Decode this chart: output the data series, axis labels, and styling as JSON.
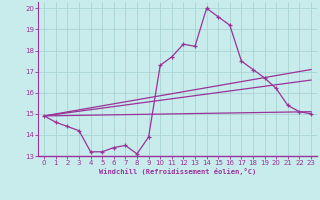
{
  "xlabel": "Windchill (Refroidissement éolien,°C)",
  "background_color": "#c8ecec",
  "grid_color": "#aad4d4",
  "line_color": "#993399",
  "xlim": [
    -0.5,
    23.5
  ],
  "ylim": [
    13.0,
    20.3
  ],
  "yticks": [
    13,
    14,
    15,
    16,
    17,
    18,
    19,
    20
  ],
  "xticks": [
    0,
    1,
    2,
    3,
    4,
    5,
    6,
    7,
    8,
    9,
    10,
    11,
    12,
    13,
    14,
    15,
    16,
    17,
    18,
    19,
    20,
    21,
    22,
    23
  ],
  "line1_x": [
    0,
    1,
    2,
    3,
    4,
    5,
    6,
    7,
    8,
    9,
    10,
    11,
    12,
    13,
    14,
    15,
    16,
    17,
    18,
    19,
    20,
    21,
    22,
    23
  ],
  "line1_y": [
    14.9,
    14.6,
    14.4,
    14.2,
    13.2,
    13.2,
    13.4,
    13.5,
    13.1,
    13.9,
    17.3,
    17.7,
    18.3,
    18.2,
    20.0,
    19.6,
    19.2,
    17.5,
    17.1,
    16.7,
    16.2,
    15.4,
    15.1,
    15.0
  ],
  "line2_x": [
    0,
    23
  ],
  "line2_y": [
    14.9,
    17.1
  ],
  "line3_x": [
    0,
    23
  ],
  "line3_y": [
    14.9,
    16.6
  ],
  "line4_x": [
    0,
    23
  ],
  "line4_y": [
    14.9,
    15.1
  ]
}
